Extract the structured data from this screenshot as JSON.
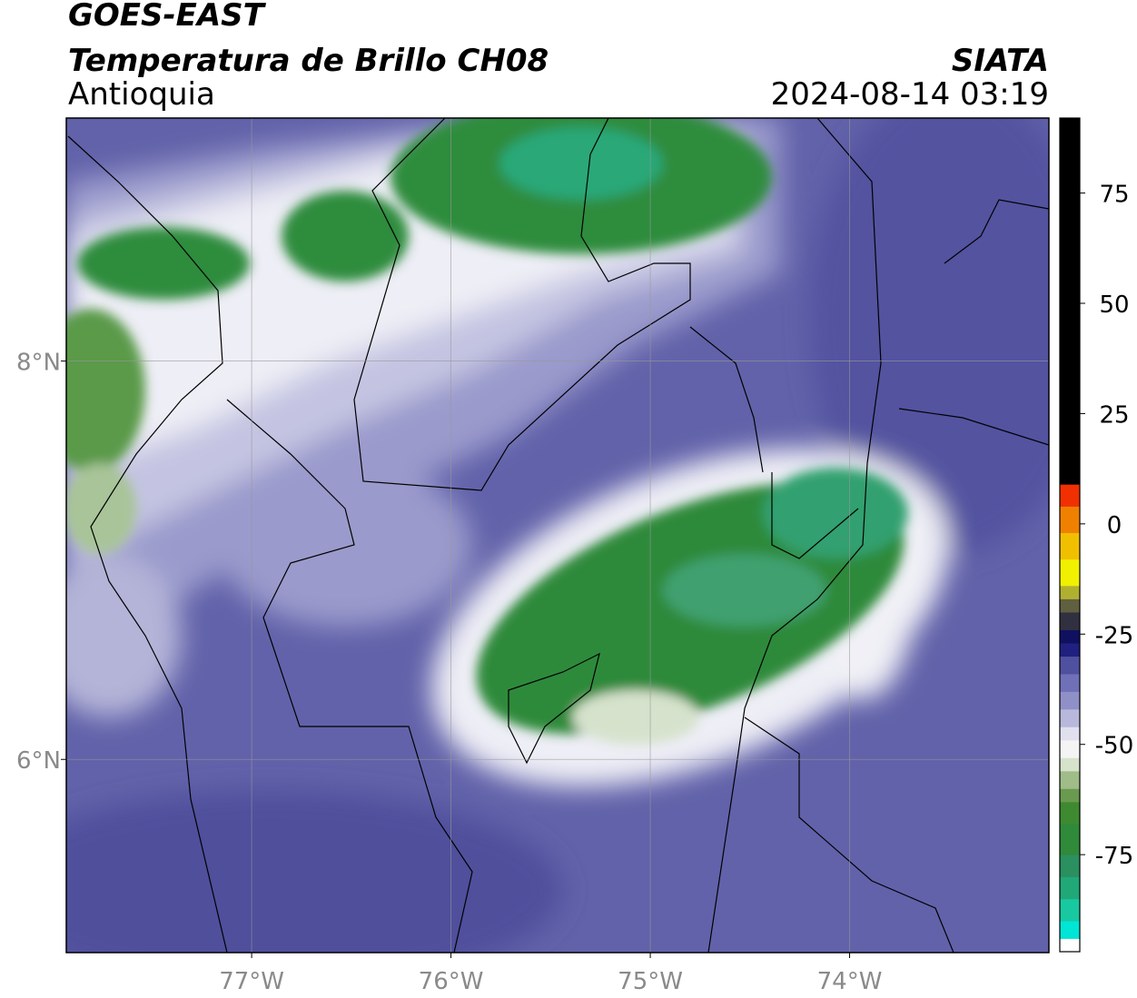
{
  "header": {
    "title": "GOES-EAST",
    "subtitle": "Temperatura de Brillo CH08",
    "region": "Antioquia",
    "source": "SIATA",
    "datetime": "2024-08-14 03:19"
  },
  "map": {
    "xlim": [
      -77.93,
      -73.0
    ],
    "ylim": [
      5.03,
      9.22
    ],
    "grid": true,
    "xticks": [
      {
        "value": -77,
        "label": "77°W"
      },
      {
        "value": -76,
        "label": "76°W"
      },
      {
        "value": -75,
        "label": "75°W"
      },
      {
        "value": -74,
        "label": "74°W"
      }
    ],
    "yticks": [
      {
        "value": 8,
        "label": "8°N"
      },
      {
        "value": 6,
        "label": "6°N"
      }
    ]
  },
  "colorbar": {
    "lim": [
      -97,
      92
    ],
    "ticks": [
      75,
      50,
      25,
      0,
      -25,
      -50,
      -75
    ],
    "segments": [
      {
        "value": -97,
        "color": "#ffffff"
      },
      {
        "value": -94,
        "color": "#00e5d5"
      },
      {
        "value": -90,
        "color": "#18c8a0"
      },
      {
        "value": -85,
        "color": "#20a878"
      },
      {
        "value": -80,
        "color": "#2a9060"
      },
      {
        "value": -75,
        "color": "#2f8a3a"
      },
      {
        "value": -68,
        "color": "#3e8a30"
      },
      {
        "value": -63,
        "color": "#6a9a50"
      },
      {
        "value": -60,
        "color": "#a0bc88"
      },
      {
        "value": -56,
        "color": "#d6e2cc"
      },
      {
        "value": -53,
        "color": "#f4f4f4"
      },
      {
        "value": -49,
        "color": "#e0e0ee"
      },
      {
        "value": -46,
        "color": "#b8b8dc"
      },
      {
        "value": -42,
        "color": "#9090c8"
      },
      {
        "value": -38,
        "color": "#7070b8"
      },
      {
        "value": -34,
        "color": "#5050a0"
      },
      {
        "value": -30,
        "color": "#202080"
      },
      {
        "value": -27,
        "color": "#101060"
      },
      {
        "value": -24,
        "color": "#303040"
      },
      {
        "value": -20,
        "color": "#606040"
      },
      {
        "value": -17,
        "color": "#b0b030"
      },
      {
        "value": -14,
        "color": "#f0f000"
      },
      {
        "value": -8,
        "color": "#f0c000"
      },
      {
        "value": -2,
        "color": "#f08000"
      },
      {
        "value": 4,
        "color": "#f03000"
      },
      {
        "value": 9,
        "color": "#000000"
      }
    ]
  }
}
